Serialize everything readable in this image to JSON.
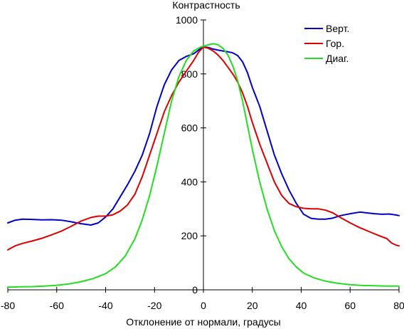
{
  "chart_data": {
    "type": "line",
    "title": "",
    "xlabel": "Отклонение от нормали, градусы",
    "ylabel": "Контрастность",
    "xlim": [
      -80,
      80
    ],
    "ylim": [
      0,
      1000
    ],
    "xticks": [
      -80,
      -60,
      -40,
      -20,
      0,
      20,
      40,
      60,
      80
    ],
    "yticks": [
      0,
      200,
      400,
      600,
      800,
      1000
    ],
    "grid": false,
    "legend_position": "top-right",
    "series": [
      {
        "name": "Верт.",
        "color": "#0000cc",
        "points": [
          [
            -80,
            248
          ],
          [
            -77,
            258
          ],
          [
            -74,
            262
          ],
          [
            -70,
            261
          ],
          [
            -66,
            259
          ],
          [
            -62,
            260
          ],
          [
            -58,
            258
          ],
          [
            -54,
            252
          ],
          [
            -50,
            245
          ],
          [
            -46,
            240
          ],
          [
            -43,
            248
          ],
          [
            -40,
            270
          ],
          [
            -37,
            300
          ],
          [
            -34,
            345
          ],
          [
            -31,
            390
          ],
          [
            -28,
            440
          ],
          [
            -25,
            500
          ],
          [
            -22,
            580
          ],
          [
            -19,
            680
          ],
          [
            -16,
            760
          ],
          [
            -13,
            815
          ],
          [
            -10,
            850
          ],
          [
            -7,
            865
          ],
          [
            -4,
            875
          ],
          [
            -2,
            888
          ],
          [
            0,
            900
          ],
          [
            2,
            898
          ],
          [
            4,
            892
          ],
          [
            6,
            888
          ],
          [
            8,
            885
          ],
          [
            10,
            882
          ],
          [
            12,
            878
          ],
          [
            14,
            868
          ],
          [
            16,
            845
          ],
          [
            18,
            805
          ],
          [
            20,
            750
          ],
          [
            23,
            680
          ],
          [
            26,
            590
          ],
          [
            29,
            500
          ],
          [
            32,
            430
          ],
          [
            35,
            370
          ],
          [
            38,
            320
          ],
          [
            41,
            280
          ],
          [
            44,
            265
          ],
          [
            47,
            262
          ],
          [
            50,
            262
          ],
          [
            53,
            266
          ],
          [
            56,
            275
          ],
          [
            60,
            282
          ],
          [
            64,
            288
          ],
          [
            67,
            285
          ],
          [
            70,
            282
          ],
          [
            73,
            280
          ],
          [
            76,
            281
          ],
          [
            79,
            277
          ],
          [
            80,
            275
          ]
        ]
      },
      {
        "name": "Гор.",
        "color": "#dd0000",
        "points": [
          [
            -80,
            148
          ],
          [
            -77,
            163
          ],
          [
            -74,
            172
          ],
          [
            -70,
            181
          ],
          [
            -66,
            191
          ],
          [
            -62,
            204
          ],
          [
            -58,
            218
          ],
          [
            -54,
            236
          ],
          [
            -50,
            255
          ],
          [
            -46,
            268
          ],
          [
            -43,
            273
          ],
          [
            -40,
            273
          ],
          [
            -37,
            278
          ],
          [
            -34,
            292
          ],
          [
            -31,
            315
          ],
          [
            -28,
            355
          ],
          [
            -25,
            420
          ],
          [
            -22,
            500
          ],
          [
            -19,
            580
          ],
          [
            -16,
            660
          ],
          [
            -13,
            720
          ],
          [
            -10,
            770
          ],
          [
            -7,
            810
          ],
          [
            -4,
            850
          ],
          [
            -2,
            880
          ],
          [
            0,
            900
          ],
          [
            2,
            895
          ],
          [
            4,
            885
          ],
          [
            6,
            870
          ],
          [
            8,
            850
          ],
          [
            10,
            825
          ],
          [
            12,
            800
          ],
          [
            14,
            770
          ],
          [
            16,
            730
          ],
          [
            18,
            680
          ],
          [
            20,
            620
          ],
          [
            23,
            540
          ],
          [
            26,
            470
          ],
          [
            29,
            400
          ],
          [
            32,
            350
          ],
          [
            35,
            320
          ],
          [
            38,
            308
          ],
          [
            41,
            302
          ],
          [
            44,
            300
          ],
          [
            47,
            300
          ],
          [
            50,
            295
          ],
          [
            53,
            285
          ],
          [
            56,
            268
          ],
          [
            60,
            248
          ],
          [
            64,
            230
          ],
          [
            68,
            215
          ],
          [
            72,
            200
          ],
          [
            75,
            190
          ],
          [
            77,
            173
          ],
          [
            79,
            165
          ],
          [
            80,
            163
          ]
        ]
      },
      {
        "name": "Диаг.",
        "color": "#22dd22",
        "points": [
          [
            -80,
            10
          ],
          [
            -75,
            11
          ],
          [
            -70,
            12
          ],
          [
            -65,
            14
          ],
          [
            -60,
            17
          ],
          [
            -55,
            22
          ],
          [
            -50,
            30
          ],
          [
            -45,
            42
          ],
          [
            -40,
            60
          ],
          [
            -36,
            85
          ],
          [
            -32,
            125
          ],
          [
            -28,
            190
          ],
          [
            -25,
            260
          ],
          [
            -22,
            350
          ],
          [
            -19,
            460
          ],
          [
            -16,
            580
          ],
          [
            -13,
            700
          ],
          [
            -10,
            790
          ],
          [
            -7,
            850
          ],
          [
            -4,
            885
          ],
          [
            -1,
            900
          ],
          [
            2,
            908
          ],
          [
            4,
            912
          ],
          [
            6,
            908
          ],
          [
            8,
            895
          ],
          [
            10,
            870
          ],
          [
            12,
            830
          ],
          [
            14,
            775
          ],
          [
            16,
            700
          ],
          [
            18,
            610
          ],
          [
            20,
            520
          ],
          [
            23,
            400
          ],
          [
            26,
            300
          ],
          [
            29,
            220
          ],
          [
            32,
            160
          ],
          [
            35,
            115
          ],
          [
            38,
            85
          ],
          [
            41,
            62
          ],
          [
            45,
            45
          ],
          [
            50,
            32
          ],
          [
            55,
            24
          ],
          [
            60,
            19
          ],
          [
            65,
            16
          ],
          [
            70,
            15
          ],
          [
            75,
            14
          ],
          [
            80,
            14
          ]
        ]
      }
    ]
  }
}
